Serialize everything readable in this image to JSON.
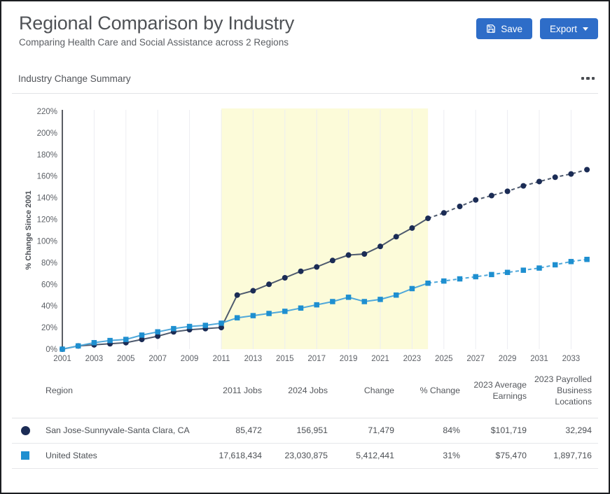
{
  "header": {
    "title": "Regional Comparison by Industry",
    "subtitle": "Comparing Health Care and Social Assistance across 2 Regions",
    "save_label": "Save",
    "export_label": "Export"
  },
  "card": {
    "title": "Industry Change Summary"
  },
  "colors": {
    "button_blue": "#2e6dc8",
    "highlight_band": "#fcfbd9",
    "gridline": "#ecedf2",
    "axis": "#5a5e64",
    "tick_text": "#5d6167"
  },
  "chart_data": {
    "type": "line",
    "title": "Industry Change Summary",
    "xlabel": "",
    "ylabel": "% Change Since 2001",
    "ylim": [
      0,
      220
    ],
    "ytick_step": 20,
    "ytick_suffix": "%",
    "grid": "vertical",
    "legend_position": "none",
    "x": [
      2001,
      2002,
      2003,
      2004,
      2005,
      2006,
      2007,
      2008,
      2009,
      2010,
      2011,
      2012,
      2013,
      2014,
      2015,
      2016,
      2017,
      2018,
      2019,
      2020,
      2021,
      2022,
      2023,
      2024,
      2025,
      2026,
      2027,
      2028,
      2029,
      2030,
      2031,
      2032,
      2033,
      2034
    ],
    "xtick_years": [
      2001,
      2003,
      2005,
      2007,
      2009,
      2011,
      2013,
      2015,
      2017,
      2019,
      2021,
      2023,
      2025,
      2027,
      2029,
      2031,
      2033
    ],
    "highlight_region": {
      "from": 2011,
      "to": 2024,
      "color": "#fcfbd9"
    },
    "forecast_start": 2024,
    "series": [
      {
        "name": "San Jose-Sunnyvale-Santa Clara, CA",
        "marker": "circle",
        "color": "#1b2c55",
        "line_color": "#4e5a6e",
        "values": [
          0,
          3,
          4,
          5,
          6,
          9,
          12,
          16,
          18,
          19,
          20,
          50,
          54,
          60,
          66,
          72,
          76,
          82,
          87,
          88,
          95,
          104,
          112,
          121,
          126,
          132,
          138,
          142,
          146,
          151,
          155,
          159,
          162,
          166
        ]
      },
      {
        "name": "United States",
        "marker": "square",
        "color": "#1e8fd0",
        "line_color": "#4fa8da",
        "values": [
          0,
          3,
          6,
          8,
          9,
          13,
          16,
          19,
          21,
          22,
          24,
          29,
          31,
          33,
          35,
          38,
          41,
          44,
          48,
          44,
          46,
          50,
          56,
          61,
          63,
          65,
          67,
          69,
          71,
          73,
          75,
          78,
          81,
          83
        ]
      }
    ]
  },
  "table": {
    "columns": [
      "Region",
      "2011 Jobs",
      "2024 Jobs",
      "Change",
      "% Change",
      "2023 Average Earnings",
      "2023 Payrolled Business Locations"
    ],
    "rows": [
      {
        "marker": "circle",
        "color": "#1b2c55",
        "region": "San Jose-Sunnyvale-Santa Clara, CA",
        "values": [
          "85,472",
          "156,951",
          "71,479",
          "84%",
          "$101,719",
          "32,294"
        ]
      },
      {
        "marker": "square",
        "color": "#1e8fd0",
        "region": "United States",
        "values": [
          "17,618,434",
          "23,030,875",
          "5,412,441",
          "31%",
          "$75,470",
          "1,897,716"
        ]
      }
    ]
  }
}
